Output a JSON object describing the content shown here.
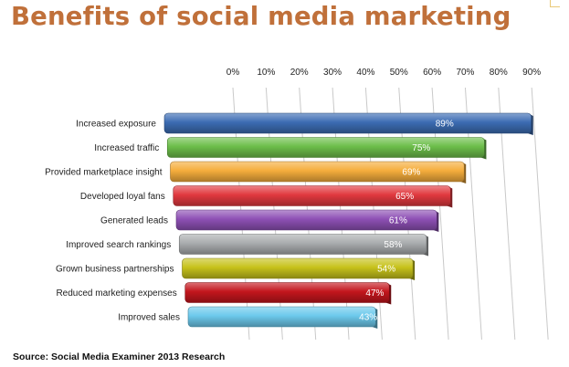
{
  "header": {
    "title": "Benefits of social media marketing"
  },
  "footer": {
    "source": "Source: Social Media Examiner 2013 Research"
  },
  "chart_data": {
    "type": "bar",
    "orientation": "horizontal",
    "title": "Benefits of social media marketing",
    "xlabel": "",
    "ylabel": "",
    "xlim": [
      0,
      90
    ],
    "ticks": [
      0,
      10,
      20,
      30,
      40,
      50,
      60,
      70,
      80,
      90
    ],
    "tick_labels": [
      "0%",
      "10%",
      "20%",
      "30%",
      "40%",
      "50%",
      "60%",
      "70%",
      "80%",
      "90%"
    ],
    "grid": true,
    "legend": "none",
    "categories": [
      "Increased exposure",
      "Increased traffic",
      "Provided marketplace insight",
      "Developed loyal fans",
      "Generated leads",
      "Improved search rankings",
      "Grown business partnerships",
      "Reduced marketing expenses",
      "Improved sales"
    ],
    "values": [
      89,
      75,
      69,
      65,
      61,
      58,
      54,
      47,
      43
    ],
    "value_labels": [
      "89%",
      "75%",
      "69%",
      "65%",
      "61%",
      "58%",
      "54%",
      "47%",
      "43%"
    ],
    "colors": [
      "#3c6cb3",
      "#6cbe4a",
      "#f5ad3c",
      "#e1393f",
      "#8e50b5",
      "#a9acae",
      "#c7c21b",
      "#c3161d",
      "#6cc9ec"
    ]
  }
}
